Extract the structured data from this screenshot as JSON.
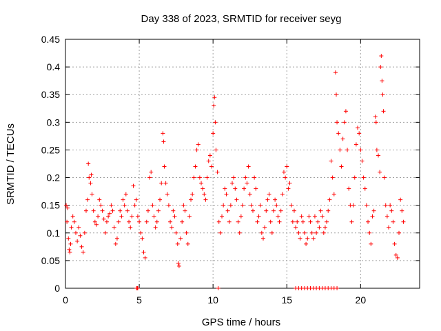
{
  "chart_data": {
    "type": "scatter",
    "title": "Day 338 of 2023, SRMTID for receiver seyg",
    "xlabel": "GPS time / hours",
    "ylabel": "SRMTID / TECUs",
    "xlim": [
      0,
      24
    ],
    "ylim": [
      0,
      0.45
    ],
    "xticks": [
      0,
      5,
      10,
      15,
      20
    ],
    "xtick_labels": [
      "0",
      "5",
      "10",
      "15",
      "20"
    ],
    "yticks": [
      0,
      0.05,
      0.1,
      0.15,
      0.2,
      0.25,
      0.3,
      0.35,
      0.4,
      0.45
    ],
    "ytick_labels": [
      "0",
      "0.05",
      "0.1",
      "0.15",
      "0.2",
      "0.25",
      "0.3",
      "0.35",
      "0.4",
      "0.45"
    ],
    "grid": true,
    "marker": "+",
    "color": "#ff0000",
    "series": [
      {
        "name": "SRMTID",
        "points": [
          [
            0.05,
            0.15
          ],
          [
            0.1,
            0.12
          ],
          [
            0.15,
            0.145
          ],
          [
            0.2,
            0.09
          ],
          [
            0.25,
            0.07
          ],
          [
            0.3,
            0.065
          ],
          [
            0.35,
            0.08
          ],
          [
            0.4,
            0.11
          ],
          [
            0.5,
            0.13
          ],
          [
            0.6,
            0.12
          ],
          [
            0.7,
            0.1
          ],
          [
            0.8,
            0.085
          ],
          [
            0.9,
            0.11
          ],
          [
            1.0,
            0.095
          ],
          [
            1.1,
            0.075
          ],
          [
            1.2,
            0.065
          ],
          [
            1.3,
            0.1
          ],
          [
            1.4,
            0.14
          ],
          [
            1.5,
            0.16
          ],
          [
            1.55,
            0.225
          ],
          [
            1.6,
            0.2
          ],
          [
            1.7,
            0.19
          ],
          [
            1.75,
            0.205
          ],
          [
            1.8,
            0.17
          ],
          [
            1.9,
            0.14
          ],
          [
            2.0,
            0.12
          ],
          [
            2.1,
            0.115
          ],
          [
            2.2,
            0.13
          ],
          [
            2.3,
            0.16
          ],
          [
            2.4,
            0.15
          ],
          [
            2.5,
            0.14
          ],
          [
            2.6,
            0.125
          ],
          [
            2.7,
            0.1
          ],
          [
            2.8,
            0.12
          ],
          [
            2.9,
            0.13
          ],
          [
            3.0,
            0.135
          ],
          [
            3.1,
            0.15
          ],
          [
            3.2,
            0.14
          ],
          [
            3.3,
            0.11
          ],
          [
            3.4,
            0.08
          ],
          [
            3.5,
            0.09
          ],
          [
            3.6,
            0.12
          ],
          [
            3.7,
            0.14
          ],
          [
            3.8,
            0.13
          ],
          [
            3.9,
            0.16
          ],
          [
            4.0,
            0.15
          ],
          [
            4.1,
            0.17
          ],
          [
            4.2,
            0.14
          ],
          [
            4.3,
            0.12
          ],
          [
            4.4,
            0.11
          ],
          [
            4.5,
            0.13
          ],
          [
            4.6,
            0.185
          ],
          [
            4.7,
            0.15
          ],
          [
            4.8,
            0.16
          ],
          [
            4.9,
            0.13
          ],
          [
            4.82,
            0.0
          ],
          [
            4.86,
            0.0
          ],
          [
            4.9,
            0.0
          ],
          [
            5.0,
            0.12
          ],
          [
            5.1,
            0.1
          ],
          [
            5.2,
            0.09
          ],
          [
            5.3,
            0.065
          ],
          [
            5.4,
            0.055
          ],
          [
            5.5,
            0.12
          ],
          [
            5.6,
            0.14
          ],
          [
            5.7,
            0.2
          ],
          [
            5.8,
            0.21
          ],
          [
            5.9,
            0.15
          ],
          [
            6.0,
            0.13
          ],
          [
            6.1,
            0.11
          ],
          [
            6.2,
            0.12
          ],
          [
            6.3,
            0.14
          ],
          [
            6.4,
            0.16
          ],
          [
            6.5,
            0.19
          ],
          [
            6.6,
            0.28
          ],
          [
            6.65,
            0.265
          ],
          [
            6.7,
            0.22
          ],
          [
            6.8,
            0.19
          ],
          [
            6.9,
            0.17
          ],
          [
            7.0,
            0.15
          ],
          [
            7.1,
            0.12
          ],
          [
            7.2,
            0.11
          ],
          [
            7.3,
            0.14
          ],
          [
            7.4,
            0.13
          ],
          [
            7.5,
            0.1
          ],
          [
            7.6,
            0.08
          ],
          [
            7.65,
            0.045
          ],
          [
            7.7,
            0.04
          ],
          [
            7.8,
            0.09
          ],
          [
            7.9,
            0.12
          ],
          [
            8.0,
            0.15
          ],
          [
            8.1,
            0.14
          ],
          [
            8.2,
            0.1
          ],
          [
            8.3,
            0.08
          ],
          [
            8.4,
            0.13
          ],
          [
            8.5,
            0.16
          ],
          [
            8.6,
            0.17
          ],
          [
            8.7,
            0.2
          ],
          [
            8.8,
            0.22
          ],
          [
            8.9,
            0.25
          ],
          [
            9.0,
            0.26
          ],
          [
            9.1,
            0.2
          ],
          [
            9.2,
            0.19
          ],
          [
            9.3,
            0.18
          ],
          [
            9.4,
            0.17
          ],
          [
            9.5,
            0.16
          ],
          [
            9.6,
            0.2
          ],
          [
            9.7,
            0.23
          ],
          [
            9.8,
            0.24
          ],
          [
            9.9,
            0.22
          ],
          [
            10.0,
            0.28
          ],
          [
            10.05,
            0.33
          ],
          [
            10.1,
            0.345
          ],
          [
            10.15,
            0.3
          ],
          [
            10.2,
            0.25
          ],
          [
            10.3,
            0.21
          ],
          [
            10.35,
            0.0
          ],
          [
            10.4,
            0.12
          ],
          [
            10.5,
            0.1
          ],
          [
            10.6,
            0.13
          ],
          [
            10.7,
            0.15
          ],
          [
            10.8,
            0.18
          ],
          [
            10.9,
            0.17
          ],
          [
            11.0,
            0.14
          ],
          [
            11.1,
            0.12
          ],
          [
            11.2,
            0.15
          ],
          [
            11.3,
            0.19
          ],
          [
            11.4,
            0.2
          ],
          [
            11.5,
            0.18
          ],
          [
            11.6,
            0.16
          ],
          [
            11.7,
            0.12
          ],
          [
            11.8,
            0.1
          ],
          [
            11.9,
            0.13
          ],
          [
            12.0,
            0.15
          ],
          [
            12.1,
            0.18
          ],
          [
            12.2,
            0.2
          ],
          [
            12.3,
            0.19
          ],
          [
            12.4,
            0.22
          ],
          [
            12.5,
            0.17
          ],
          [
            12.6,
            0.15
          ],
          [
            12.7,
            0.14
          ],
          [
            12.8,
            0.2
          ],
          [
            12.9,
            0.18
          ],
          [
            13.0,
            0.12
          ],
          [
            13.1,
            0.13
          ],
          [
            13.2,
            0.15
          ],
          [
            13.3,
            0.1
          ],
          [
            13.4,
            0.09
          ],
          [
            13.5,
            0.11
          ],
          [
            13.6,
            0.14
          ],
          [
            13.7,
            0.16
          ],
          [
            13.8,
            0.17
          ],
          [
            13.9,
            0.12
          ],
          [
            14.0,
            0.1
          ],
          [
            14.1,
            0.14
          ],
          [
            14.2,
            0.16
          ],
          [
            14.3,
            0.15
          ],
          [
            14.4,
            0.13
          ],
          [
            14.5,
            0.12
          ],
          [
            14.6,
            0.14
          ],
          [
            14.7,
            0.17
          ],
          [
            14.8,
            0.21
          ],
          [
            14.9,
            0.2
          ],
          [
            15.0,
            0.22
          ],
          [
            15.1,
            0.18
          ],
          [
            15.2,
            0.19
          ],
          [
            15.3,
            0.15
          ],
          [
            15.4,
            0.12
          ],
          [
            15.5,
            0.14
          ],
          [
            15.6,
            0.11
          ],
          [
            15.7,
            0.12
          ],
          [
            15.8,
            0.1
          ],
          [
            15.9,
            0.09
          ],
          [
            16.0,
            0.13
          ],
          [
            16.1,
            0.12
          ],
          [
            16.2,
            0.1
          ],
          [
            16.3,
            0.08
          ],
          [
            16.4,
            0.09
          ],
          [
            16.5,
            0.13
          ],
          [
            16.6,
            0.12
          ],
          [
            16.7,
            0.1
          ],
          [
            16.8,
            0.09
          ],
          [
            16.9,
            0.13
          ],
          [
            17.0,
            0.1
          ],
          [
            17.1,
            0.12
          ],
          [
            17.2,
            0.11
          ],
          [
            17.3,
            0.14
          ],
          [
            17.4,
            0.13
          ],
          [
            17.5,
            0.1
          ],
          [
            17.6,
            0.11
          ],
          [
            17.7,
            0.12
          ],
          [
            17.8,
            0.14
          ],
          [
            17.9,
            0.16
          ],
          [
            18.0,
            0.23
          ],
          [
            18.1,
            0.2
          ],
          [
            18.2,
            0.17
          ],
          [
            18.3,
            0.39
          ],
          [
            18.35,
            0.35
          ],
          [
            18.4,
            0.3
          ],
          [
            18.5,
            0.28
          ],
          [
            18.6,
            0.25
          ],
          [
            18.7,
            0.22
          ],
          [
            18.8,
            0.27
          ],
          [
            18.9,
            0.3
          ],
          [
            19.0,
            0.32
          ],
          [
            19.1,
            0.25
          ],
          [
            19.2,
            0.18
          ],
          [
            19.3,
            0.15
          ],
          [
            19.4,
            0.12
          ],
          [
            19.5,
            0.15
          ],
          [
            19.6,
            0.2
          ],
          [
            19.7,
            0.26
          ],
          [
            19.8,
            0.29
          ],
          [
            19.9,
            0.28
          ],
          [
            20.0,
            0.25
          ],
          [
            20.1,
            0.23
          ],
          [
            20.2,
            0.2
          ],
          [
            20.3,
            0.18
          ],
          [
            20.4,
            0.15
          ],
          [
            20.5,
            0.12
          ],
          [
            20.6,
            0.1
          ],
          [
            20.7,
            0.08
          ],
          [
            20.8,
            0.13
          ],
          [
            20.9,
            0.14
          ],
          [
            21.0,
            0.31
          ],
          [
            21.05,
            0.3
          ],
          [
            21.1,
            0.25
          ],
          [
            21.2,
            0.24
          ],
          [
            21.3,
            0.21
          ],
          [
            21.35,
            0.4
          ],
          [
            21.4,
            0.42
          ],
          [
            21.45,
            0.375
          ],
          [
            21.5,
            0.35
          ],
          [
            21.55,
            0.32
          ],
          [
            21.6,
            0.2
          ],
          [
            21.7,
            0.15
          ],
          [
            21.8,
            0.13
          ],
          [
            21.9,
            0.11
          ],
          [
            22.0,
            0.15
          ],
          [
            22.1,
            0.14
          ],
          [
            22.2,
            0.12
          ],
          [
            22.3,
            0.08
          ],
          [
            22.4,
            0.06
          ],
          [
            22.5,
            0.055
          ],
          [
            22.6,
            0.1
          ],
          [
            22.7,
            0.16
          ],
          [
            22.8,
            0.14
          ],
          [
            22.9,
            0.12
          ],
          [
            15.6,
            0.0
          ],
          [
            15.8,
            0.0
          ],
          [
            16.0,
            0.0
          ],
          [
            16.2,
            0.0
          ],
          [
            16.4,
            0.0
          ],
          [
            16.6,
            0.0
          ],
          [
            16.8,
            0.0
          ],
          [
            17.0,
            0.0
          ],
          [
            17.2,
            0.0
          ],
          [
            17.4,
            0.0
          ],
          [
            17.6,
            0.0
          ],
          [
            17.8,
            0.0
          ],
          [
            18.0,
            0.0
          ],
          [
            18.2,
            0.0
          ],
          [
            18.4,
            0.0
          ]
        ]
      }
    ]
  }
}
